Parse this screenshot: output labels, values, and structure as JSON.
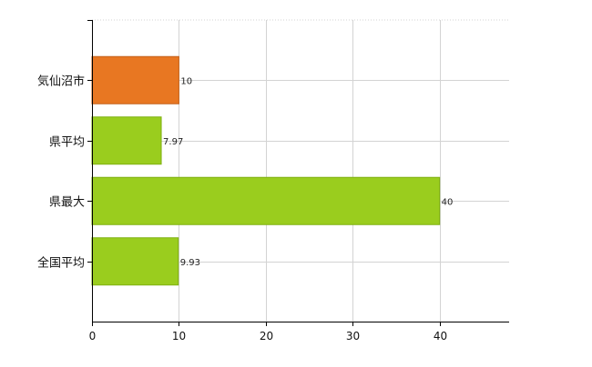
{
  "chart_data": {
    "type": "bar",
    "orientation": "horizontal",
    "categories": [
      "気仙沼市",
      "県平均",
      "県最大",
      "全国平均"
    ],
    "values": [
      10,
      7.97,
      40,
      9.93
    ],
    "data_labels": [
      "10",
      "7.97",
      "40",
      "9.93"
    ],
    "highlight_index": 0,
    "xlim": [
      0,
      48
    ],
    "x_ticks": [
      0,
      10,
      20,
      30,
      40
    ],
    "x_tick_labels": [
      "0",
      "10",
      "20",
      "30",
      "40"
    ],
    "grid": true,
    "legend": "none",
    "title": "",
    "xlabel": "",
    "ylabel": ""
  },
  "colors": {
    "highlight_bar": "#e87722",
    "highlight_bar_edge": "#c4601a",
    "bar": "#9acd1e",
    "bar_edge": "#7fb010",
    "grid": "#d3d3d3",
    "axis": "#000000"
  }
}
